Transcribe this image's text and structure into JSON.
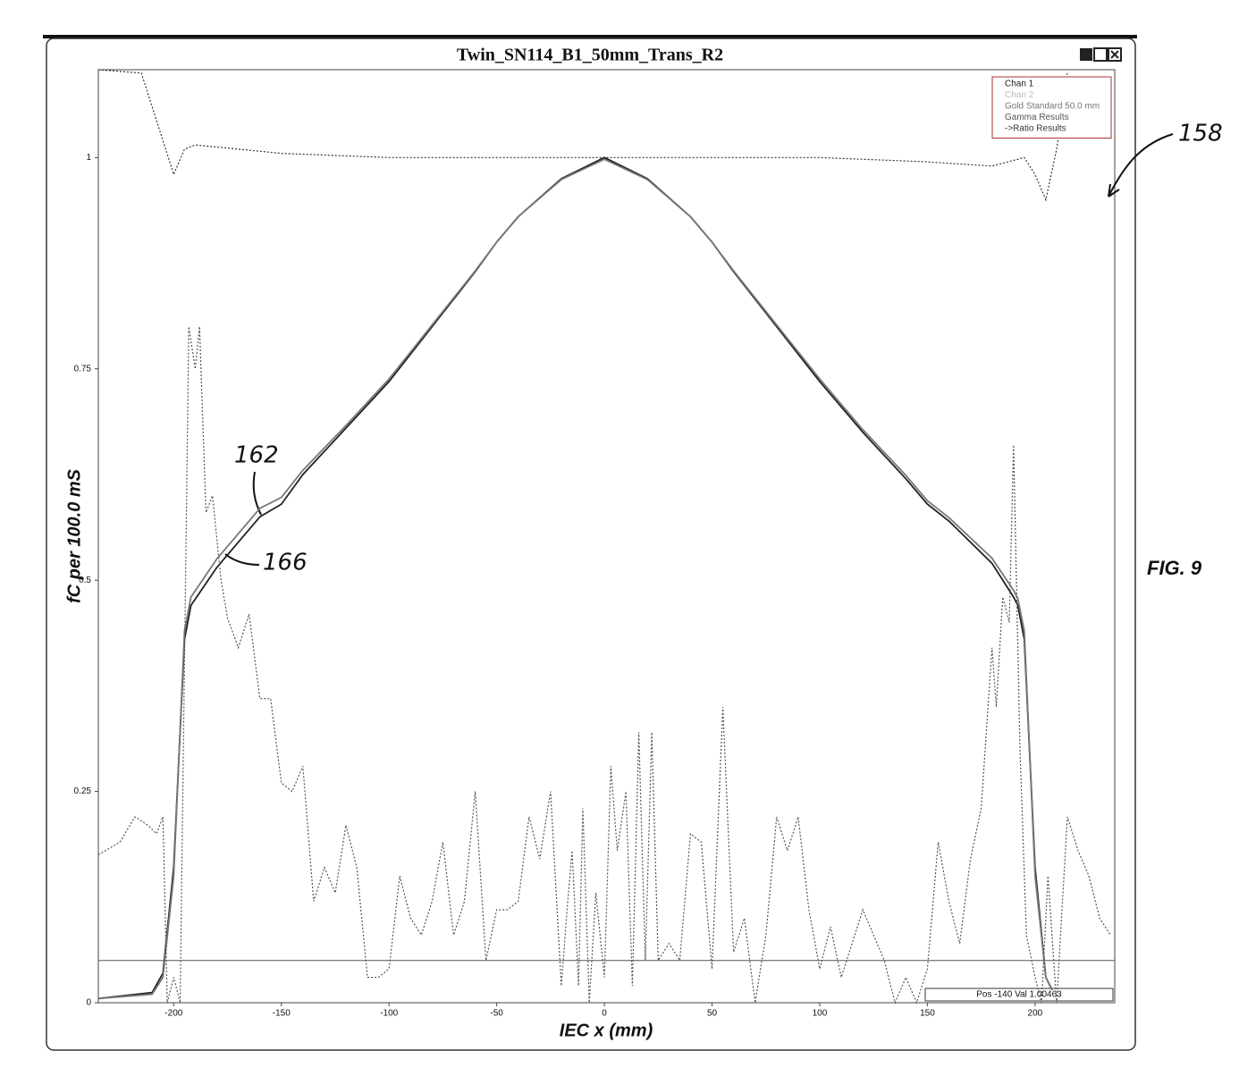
{
  "chart_data": {
    "type": "line",
    "title": "Twin_SN114_B1_50mm_Trans_R2",
    "xlabel": "IEC x (mm)",
    "ylabel": "fC per 100.0 mS",
    "xlim": [
      -235,
      237
    ],
    "ylim": [
      0,
      1.104
    ],
    "xticks": [
      -200,
      -150,
      -100,
      -50,
      0,
      50,
      100,
      150,
      200
    ],
    "yticks": [
      0,
      0.25,
      0.5,
      0.75,
      1
    ],
    "threshold": 0.05,
    "legend_position": "upper right",
    "series": [
      {
        "name": "Chan 1",
        "color": "#222222",
        "dash": false,
        "x": [
          -235,
          -210,
          -205,
          -200,
          -195,
          -192,
          -180,
          -160,
          -150,
          -140,
          -120,
          -100,
          -80,
          -60,
          -50,
          -40,
          -20,
          0,
          20,
          40,
          50,
          60,
          80,
          100,
          120,
          140,
          150,
          160,
          180,
          190,
          192,
          195,
          200,
          205,
          208
        ],
        "values": [
          0.005,
          0.012,
          0.035,
          0.16,
          0.43,
          0.47,
          0.515,
          0.575,
          0.59,
          0.625,
          0.68,
          0.735,
          0.8,
          0.865,
          0.9,
          0.93,
          0.975,
          1.0,
          0.975,
          0.93,
          0.9,
          0.865,
          0.8,
          0.735,
          0.675,
          0.62,
          0.59,
          0.57,
          0.52,
          0.48,
          0.47,
          0.43,
          0.16,
          0.03,
          0.015
        ]
      },
      {
        "name": "Chan 2",
        "color": "#bbbbbb",
        "dash": false,
        "x": [],
        "values": []
      },
      {
        "name": "Gold Standard 50.0 mm",
        "color": "#777777",
        "dash": false,
        "x": [
          -235,
          -210,
          -205,
          -200,
          -195,
          -192,
          -180,
          -160,
          -150,
          -140,
          -120,
          -100,
          -80,
          -60,
          -50,
          -40,
          -20,
          0,
          20,
          40,
          50,
          60,
          80,
          100,
          120,
          140,
          150,
          160,
          180,
          190,
          192,
          195,
          200,
          205,
          208
        ],
        "values": [
          0.005,
          0.01,
          0.03,
          0.15,
          0.44,
          0.48,
          0.525,
          0.585,
          0.598,
          0.63,
          0.683,
          0.738,
          0.802,
          0.866,
          0.9,
          0.93,
          0.974,
          0.998,
          0.974,
          0.93,
          0.9,
          0.866,
          0.802,
          0.738,
          0.678,
          0.624,
          0.594,
          0.574,
          0.526,
          0.488,
          0.478,
          0.44,
          0.15,
          0.03,
          0.015
        ]
      },
      {
        "name": "Gamma Results",
        "color": "#555555",
        "dash": true,
        "x": [
          -235,
          -225,
          -218,
          -212,
          -208,
          -205,
          -203,
          -200,
          -197,
          -193,
          -190,
          -188,
          -185,
          -182,
          -178,
          -175,
          -170,
          -165,
          -160,
          -155,
          -150,
          -145,
          -140,
          -135,
          -130,
          -125,
          -120,
          -115,
          -110,
          -105,
          -100,
          -95,
          -90,
          -85,
          -80,
          -75,
          -70,
          -65,
          -60,
          -55,
          -50,
          -45,
          -40,
          -35,
          -30,
          -25,
          -20,
          -17,
          -15,
          -12,
          -10,
          -7,
          -4,
          0,
          3,
          6,
          10,
          13,
          16,
          19,
          22,
          25,
          30,
          35,
          40,
          45,
          50,
          55,
          60,
          65,
          70,
          75,
          80,
          85,
          90,
          95,
          100,
          105,
          110,
          115,
          120,
          125,
          130,
          135,
          140,
          145,
          150,
          155,
          160,
          165,
          170,
          175,
          180,
          182,
          185,
          188,
          190,
          193,
          196,
          200,
          203,
          206,
          210,
          215,
          220,
          225,
          230,
          235
        ],
        "values": [
          0.175,
          0.19,
          0.22,
          0.21,
          0.2,
          0.22,
          0.0,
          0.03,
          0.0,
          0.8,
          0.75,
          0.8,
          0.58,
          0.6,
          0.5,
          0.455,
          0.42,
          0.46,
          0.36,
          0.36,
          0.26,
          0.25,
          0.28,
          0.12,
          0.16,
          0.13,
          0.21,
          0.16,
          0.03,
          0.03,
          0.04,
          0.15,
          0.1,
          0.08,
          0.12,
          0.19,
          0.08,
          0.12,
          0.25,
          0.05,
          0.11,
          0.11,
          0.12,
          0.22,
          0.17,
          0.25,
          0.02,
          0.12,
          0.18,
          0.02,
          0.23,
          0.0,
          0.13,
          0.03,
          0.28,
          0.18,
          0.25,
          0.02,
          0.32,
          0.05,
          0.32,
          0.05,
          0.07,
          0.05,
          0.2,
          0.19,
          0.04,
          0.35,
          0.06,
          0.1,
          0.0,
          0.08,
          0.22,
          0.18,
          0.22,
          0.11,
          0.04,
          0.09,
          0.03,
          0.07,
          0.11,
          0.08,
          0.05,
          0.0,
          0.03,
          0.0,
          0.04,
          0.19,
          0.12,
          0.07,
          0.17,
          0.23,
          0.42,
          0.35,
          0.48,
          0.45,
          0.66,
          0.3,
          0.08,
          0.03,
          0.0,
          0.15,
          0.0,
          0.22,
          0.18,
          0.15,
          0.1,
          0.08
        ]
      },
      {
        "name": "->Ratio Results",
        "color": "#333333",
        "dash": true,
        "x": [
          -235,
          -215,
          -205,
          -200,
          -195,
          -190,
          -150,
          -100,
          -50,
          0,
          50,
          100,
          150,
          180,
          195,
          200,
          205,
          210,
          215
        ],
        "values": [
          1.104,
          1.1,
          1.02,
          0.98,
          1.01,
          1.015,
          1.005,
          1.0,
          1.0,
          1.0,
          1.0,
          1.0,
          0.995,
          0.99,
          1.0,
          0.98,
          0.95,
          1.01,
          1.1
        ]
      }
    ],
    "status": "Pos -140  Val 1.00463",
    "annotations": [
      "158",
      "162",
      "166",
      "FIG. 9"
    ]
  }
}
